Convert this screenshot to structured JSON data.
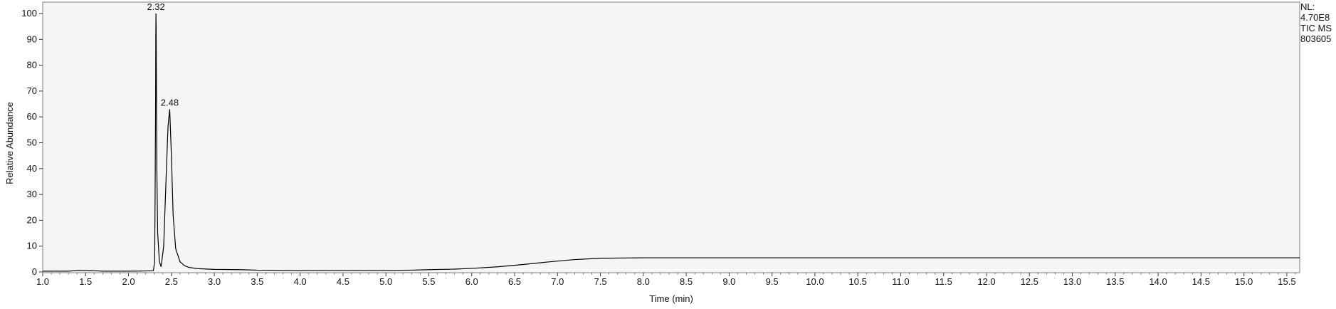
{
  "chart_data": {
    "type": "line",
    "title": "",
    "xlabel": "Time (min)",
    "ylabel": "Relative Abundance",
    "xlim": [
      1.0,
      15.65
    ],
    "ylim": [
      0,
      100
    ],
    "x_ticks": [
      "1.0",
      "1.5",
      "2.0",
      "2.5",
      "3.0",
      "3.5",
      "4.0",
      "4.5",
      "5.0",
      "5.5",
      "6.0",
      "6.5",
      "7.0",
      "7.5",
      "8.0",
      "8.5",
      "9.0",
      "9.5",
      "10.0",
      "10.5",
      "11.0",
      "11.5",
      "12.0",
      "12.5",
      "13.0",
      "13.5",
      "14.0",
      "14.5",
      "15.0",
      "15.5"
    ],
    "y_ticks": [
      "0",
      "10",
      "20",
      "30",
      "40",
      "50",
      "60",
      "70",
      "80",
      "90",
      "100"
    ],
    "peak_annotations": [
      {
        "x": 2.32,
        "y": 100,
        "label": "2.32"
      },
      {
        "x": 2.48,
        "y": 63,
        "label": "2.48"
      }
    ],
    "series": [
      {
        "x": [
          1.0,
          1.3,
          1.4,
          1.6,
          1.7,
          2.0,
          2.2,
          2.29,
          2.305,
          2.31,
          2.315,
          2.318,
          2.32,
          2.322,
          2.325,
          2.33,
          2.34,
          2.36,
          2.38,
          2.41,
          2.44,
          2.46,
          2.48,
          2.5,
          2.52,
          2.55,
          2.6,
          2.65,
          2.7,
          2.8,
          3.0,
          3.3,
          3.5,
          4.0,
          4.5,
          5.0,
          5.3,
          5.5,
          5.8,
          6.0,
          6.3,
          6.6,
          6.9,
          7.2,
          7.5,
          8.0,
          9.0,
          10.0,
          11.0,
          12.0,
          13.0,
          14.0,
          15.0,
          15.65
        ],
        "y": [
          0.3,
          0.3,
          0.6,
          0.5,
          0.3,
          0.3,
          0.4,
          0.5,
          4,
          30,
          60,
          90,
          100,
          95,
          76,
          40,
          15,
          4,
          2,
          10,
          38,
          56,
          63,
          45,
          22,
          9,
          4,
          2.5,
          1.8,
          1.3,
          1.0,
          0.9,
          0.7,
          0.6,
          0.6,
          0.6,
          0.7,
          0.9,
          1.1,
          1.4,
          2.0,
          2.9,
          3.9,
          4.8,
          5.3,
          5.5,
          5.5,
          5.5,
          5.5,
          5.5,
          5.5,
          5.5,
          5.5,
          5.5
        ]
      }
    ]
  },
  "nl_block": {
    "line1": "NL:",
    "line2": "4.70E8",
    "line3": "TIC  MS",
    "line4": "803605"
  }
}
